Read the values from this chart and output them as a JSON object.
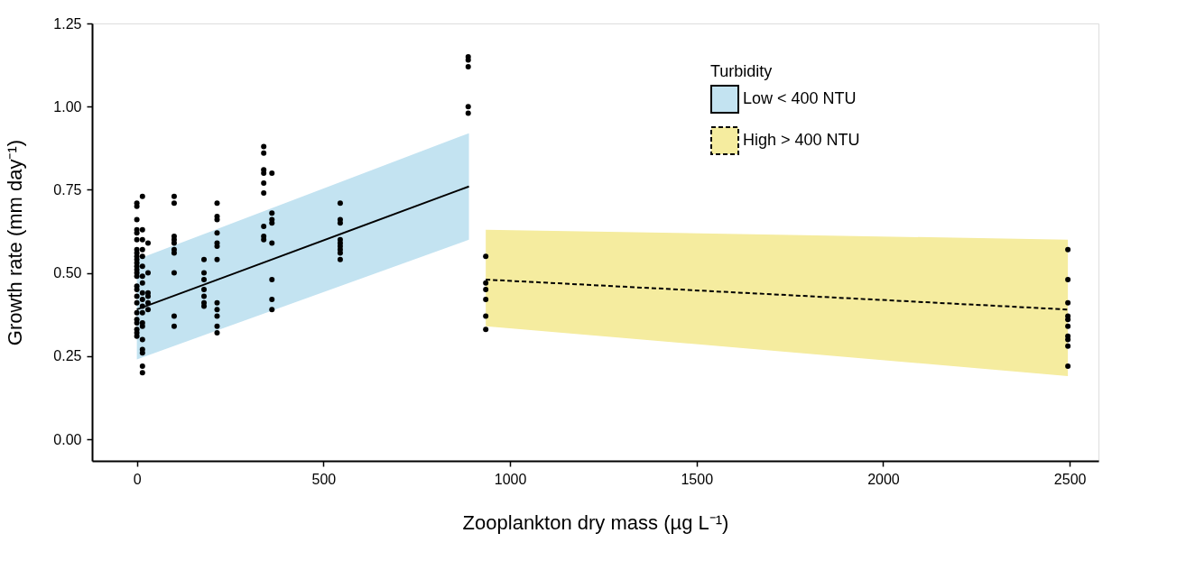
{
  "chart_data": {
    "type": "scatter",
    "xlabel": "Zooplankton dry mass (µg L⁻¹)",
    "ylabel": "Growth rate (mm day⁻¹)",
    "legend_title": "Turbidity",
    "legend": "top right",
    "grid": false,
    "xlim": [
      -120,
      2577
    ],
    "xticks": [
      0,
      500,
      1000,
      1500,
      2000,
      2500
    ],
    "ylim": [
      -0.065,
      1.25
    ],
    "yticks": [
      {
        "value": 0,
        "label": "0.00"
      },
      {
        "value": 0.25,
        "label": "0.25"
      },
      {
        "value": 0.5,
        "label": "0.50"
      },
      {
        "value": 0.75,
        "label": "0.75"
      },
      {
        "value": 1,
        "label": "1.00"
      },
      {
        "value": 1.25,
        "label": "1.25"
      }
    ],
    "series": [
      {
        "name": "Low < 400 NTU",
        "type": "line",
        "color": "#000000",
        "line_style": "solid",
        "x": [
          0,
          890
        ],
        "values": [
          0.39,
          0.76
        ],
        "lower": [
          0.24,
          0.6
        ],
        "upper": [
          0.54,
          0.92
        ]
      },
      {
        "name": "High > 400 NTU",
        "type": "line",
        "color": "#000000",
        "line_style": "dashed",
        "x": [
          935,
          2495
        ],
        "values": [
          0.48,
          0.39
        ],
        "lower": [
          0.34,
          0.19
        ],
        "upper": [
          0.63,
          0.6
        ]
      },
      {
        "type": "scatter",
        "marker": "circle",
        "color": "#000000",
        "x": [
          0,
          0,
          0,
          0,
          0,
          0,
          0,
          0,
          0,
          0,
          0,
          0,
          0,
          0,
          0,
          0,
          0,
          0,
          0,
          0,
          0,
          0,
          0,
          0,
          0,
          15,
          15,
          15,
          15,
          15,
          15,
          15,
          15,
          15,
          15,
          15,
          15,
          15,
          15,
          15,
          15,
          15,
          15,
          15,
          30,
          30,
          30,
          30,
          30,
          30,
          100,
          100,
          100,
          100,
          100,
          100,
          100,
          100,
          100,
          100,
          180,
          180,
          180,
          180,
          180,
          180,
          180,
          215,
          215,
          215,
          215,
          215,
          215,
          215,
          215,
          215,
          215,
          215,
          215,
          340,
          340,
          340,
          340,
          340,
          340,
          340,
          340,
          340,
          362,
          362,
          362,
          362,
          362,
          362,
          362,
          362,
          545,
          545,
          545,
          545,
          545,
          545,
          545,
          545,
          545,
          888,
          888,
          888,
          888,
          888,
          935,
          935,
          935,
          935,
          935,
          935,
          2495,
          2495,
          2495,
          2495,
          2495,
          2495,
          2495,
          2495,
          2495,
          2495
        ],
        "values": [
          0.71,
          0.7,
          0.66,
          0.63,
          0.62,
          0.6,
          0.57,
          0.56,
          0.55,
          0.54,
          0.53,
          0.52,
          0.51,
          0.5,
          0.49,
          0.46,
          0.45,
          0.43,
          0.41,
          0.38,
          0.36,
          0.35,
          0.33,
          0.32,
          0.31,
          0.73,
          0.63,
          0.6,
          0.57,
          0.55,
          0.52,
          0.49,
          0.47,
          0.44,
          0.42,
          0.4,
          0.38,
          0.35,
          0.34,
          0.3,
          0.27,
          0.26,
          0.22,
          0.2,
          0.59,
          0.5,
          0.44,
          0.43,
          0.41,
          0.39,
          0.73,
          0.71,
          0.61,
          0.6,
          0.59,
          0.57,
          0.56,
          0.5,
          0.37,
          0.34,
          0.54,
          0.5,
          0.48,
          0.45,
          0.43,
          0.41,
          0.4,
          0.71,
          0.67,
          0.66,
          0.62,
          0.59,
          0.58,
          0.54,
          0.41,
          0.39,
          0.37,
          0.34,
          0.32,
          0.88,
          0.86,
          0.81,
          0.8,
          0.77,
          0.74,
          0.64,
          0.61,
          0.6,
          0.8,
          0.68,
          0.66,
          0.65,
          0.59,
          0.48,
          0.42,
          0.39,
          0.71,
          0.66,
          0.65,
          0.6,
          0.59,
          0.58,
          0.57,
          0.56,
          0.54,
          1.15,
          1.14,
          1.12,
          1.0,
          0.98,
          0.55,
          0.47,
          0.45,
          0.42,
          0.37,
          0.33,
          0.57,
          0.48,
          0.41,
          0.37,
          0.36,
          0.34,
          0.31,
          0.3,
          0.28,
          0.22
        ]
      }
    ]
  }
}
